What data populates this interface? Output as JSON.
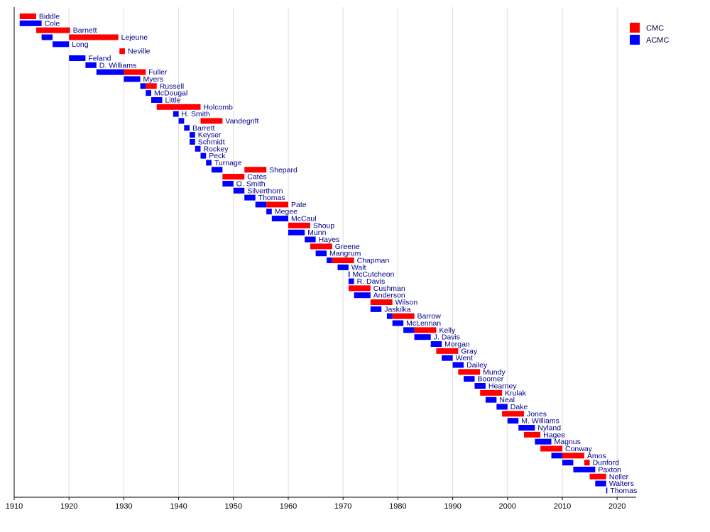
{
  "chart_data": {
    "type": "bar",
    "orientation": "horizontal-timeline",
    "xlim": [
      1910,
      2024
    ],
    "x_ticks": [
      1910,
      1920,
      1930,
      1940,
      1950,
      1960,
      1970,
      1980,
      1990,
      2000,
      2010,
      2020
    ],
    "grid": true,
    "legend_position": "top-right",
    "series": [
      {
        "name": "CMC",
        "color": "#ff0000"
      },
      {
        "name": "ACMC",
        "color": "#0000ff"
      }
    ],
    "rows": [
      {
        "label": "Biddle",
        "segments": [
          {
            "series": "CMC",
            "start": 1911,
            "end": 1914
          }
        ]
      },
      {
        "label": "Cole",
        "segments": [
          {
            "series": "ACMC",
            "start": 1911,
            "end": 1915
          }
        ]
      },
      {
        "label": "Barnett",
        "segments": [
          {
            "series": "CMC",
            "start": 1914,
            "end": 1920.2
          }
        ]
      },
      {
        "label": "Lejeune",
        "segments": [
          {
            "series": "ACMC",
            "start": 1915,
            "end": 1917
          },
          {
            "series": "CMC",
            "start": 1920,
            "end": 1929
          }
        ]
      },
      {
        "label": "Long",
        "segments": [
          {
            "series": "ACMC",
            "start": 1917,
            "end": 1920
          }
        ]
      },
      {
        "label": "Neville",
        "segments": [
          {
            "series": "CMC",
            "start": 1929.2,
            "end": 1930.2
          }
        ]
      },
      {
        "label": "Feland",
        "segments": [
          {
            "series": "ACMC",
            "start": 1920,
            "end": 1923
          }
        ]
      },
      {
        "label": "D. Williams",
        "segments": [
          {
            "series": "ACMC",
            "start": 1923,
            "end": 1925
          }
        ]
      },
      {
        "label": "Fuller",
        "segments": [
          {
            "series": "ACMC",
            "start": 1925,
            "end": 1928
          },
          {
            "series": "ACMC",
            "start": 1928,
            "end": 1930
          },
          {
            "series": "CMC",
            "start": 1930,
            "end": 1934
          }
        ]
      },
      {
        "label": "Myers",
        "segments": [
          {
            "series": "ACMC",
            "start": 1930,
            "end": 1933
          }
        ]
      },
      {
        "label": "Russell",
        "segments": [
          {
            "series": "ACMC",
            "start": 1933,
            "end": 1934
          },
          {
            "series": "CMC",
            "start": 1934,
            "end": 1936
          }
        ]
      },
      {
        "label": "McDougal",
        "segments": [
          {
            "series": "ACMC",
            "start": 1934,
            "end": 1935
          }
        ]
      },
      {
        "label": "Little",
        "segments": [
          {
            "series": "ACMC",
            "start": 1935,
            "end": 1937
          }
        ]
      },
      {
        "label": "Holcomb",
        "segments": [
          {
            "series": "CMC",
            "start": 1936,
            "end": 1944
          }
        ]
      },
      {
        "label": "H. Smith",
        "segments": [
          {
            "series": "ACMC",
            "start": 1939,
            "end": 1940
          }
        ]
      },
      {
        "label": "Vandegrift",
        "segments": [
          {
            "series": "ACMC",
            "start": 1940,
            "end": 1941
          },
          {
            "series": "CMC",
            "start": 1944,
            "end": 1948
          }
        ]
      },
      {
        "label": "Barrett",
        "segments": [
          {
            "series": "ACMC",
            "start": 1941,
            "end": 1942
          }
        ]
      },
      {
        "label": "Keyser",
        "segments": [
          {
            "series": "ACMC",
            "start": 1942,
            "end": 1943
          }
        ]
      },
      {
        "label": "Schmidt",
        "segments": [
          {
            "series": "ACMC",
            "start": 1942,
            "end": 1943
          }
        ]
      },
      {
        "label": "Rockey",
        "segments": [
          {
            "series": "ACMC",
            "start": 1943,
            "end": 1944
          }
        ]
      },
      {
        "label": "Peck",
        "segments": [
          {
            "series": "ACMC",
            "start": 1944,
            "end": 1945
          }
        ]
      },
      {
        "label": "Turnage",
        "segments": [
          {
            "series": "ACMC",
            "start": 1945,
            "end": 1946
          }
        ]
      },
      {
        "label": "Shepard",
        "segments": [
          {
            "series": "ACMC",
            "start": 1946,
            "end": 1948
          },
          {
            "series": "CMC",
            "start": 1952,
            "end": 1956
          }
        ]
      },
      {
        "label": "Cates",
        "segments": [
          {
            "series": "CMC",
            "start": 1948,
            "end": 1952
          }
        ]
      },
      {
        "label": "O. Smith",
        "segments": [
          {
            "series": "ACMC",
            "start": 1948,
            "end": 1950
          }
        ]
      },
      {
        "label": "Silverthorn",
        "segments": [
          {
            "series": "ACMC",
            "start": 1950,
            "end": 1952
          }
        ]
      },
      {
        "label": "Thomas",
        "segments": [
          {
            "series": "ACMC",
            "start": 1952,
            "end": 1954
          }
        ]
      },
      {
        "label": "Pate",
        "segments": [
          {
            "series": "ACMC",
            "start": 1954,
            "end": 1956
          },
          {
            "series": "CMC",
            "start": 1956,
            "end": 1960
          }
        ]
      },
      {
        "label": "Megee",
        "segments": [
          {
            "series": "ACMC",
            "start": 1956,
            "end": 1957
          }
        ]
      },
      {
        "label": "McCaul",
        "segments": [
          {
            "series": "ACMC",
            "start": 1957,
            "end": 1960
          }
        ]
      },
      {
        "label": "Shoup",
        "segments": [
          {
            "series": "CMC",
            "start": 1960,
            "end": 1964
          }
        ]
      },
      {
        "label": "Munn",
        "segments": [
          {
            "series": "ACMC",
            "start": 1960,
            "end": 1963
          }
        ]
      },
      {
        "label": "Hayes",
        "segments": [
          {
            "series": "ACMC",
            "start": 1963,
            "end": 1965
          }
        ]
      },
      {
        "label": "Greene",
        "segments": [
          {
            "series": "CMC",
            "start": 1964,
            "end": 1968
          }
        ]
      },
      {
        "label": "Mangrum",
        "segments": [
          {
            "series": "ACMC",
            "start": 1965,
            "end": 1967
          }
        ]
      },
      {
        "label": "Chapman",
        "segments": [
          {
            "series": "ACMC",
            "start": 1967,
            "end": 1968
          },
          {
            "series": "CMC",
            "start": 1968,
            "end": 1972
          }
        ]
      },
      {
        "label": "Walt",
        "segments": [
          {
            "series": "ACMC",
            "start": 1969,
            "end": 1971
          }
        ]
      },
      {
        "label": "McCutcheon",
        "segments": [
          {
            "series": "ACMC",
            "start": 1971,
            "end": 1971.2
          }
        ]
      },
      {
        "label": "R. Davis",
        "segments": [
          {
            "series": "ACMC",
            "start": 1971,
            "end": 1972
          }
        ]
      },
      {
        "label": "Cushman",
        "segments": [
          {
            "series": "CMC",
            "start": 1971,
            "end": 1975
          }
        ]
      },
      {
        "label": "Anderson",
        "segments": [
          {
            "series": "ACMC",
            "start": 1972,
            "end": 1975
          }
        ]
      },
      {
        "label": "Wilson",
        "segments": [
          {
            "series": "CMC",
            "start": 1975,
            "end": 1979
          }
        ]
      },
      {
        "label": "Jaskilka",
        "segments": [
          {
            "series": "ACMC",
            "start": 1975,
            "end": 1977
          }
        ]
      },
      {
        "label": "Barrow",
        "segments": [
          {
            "series": "ACMC",
            "start": 1978,
            "end": 1979
          },
          {
            "series": "CMC",
            "start": 1979,
            "end": 1983
          }
        ]
      },
      {
        "label": "McLennan",
        "segments": [
          {
            "series": "ACMC",
            "start": 1979,
            "end": 1981
          }
        ]
      },
      {
        "label": "Kelly",
        "segments": [
          {
            "series": "ACMC",
            "start": 1981,
            "end": 1983
          },
          {
            "series": "CMC",
            "start": 1983,
            "end": 1987
          }
        ]
      },
      {
        "label": "J. Davis",
        "segments": [
          {
            "series": "ACMC",
            "start": 1983,
            "end": 1986
          }
        ]
      },
      {
        "label": "Morgan",
        "segments": [
          {
            "series": "ACMC",
            "start": 1986,
            "end": 1988
          }
        ]
      },
      {
        "label": "Gray",
        "segments": [
          {
            "series": "CMC",
            "start": 1987,
            "end": 1991
          }
        ]
      },
      {
        "label": "Went",
        "segments": [
          {
            "series": "ACMC",
            "start": 1988,
            "end": 1990
          }
        ]
      },
      {
        "label": "Dailey",
        "segments": [
          {
            "series": "ACMC",
            "start": 1990,
            "end": 1992
          }
        ]
      },
      {
        "label": "Mundy",
        "segments": [
          {
            "series": "CMC",
            "start": 1991,
            "end": 1995
          }
        ]
      },
      {
        "label": "Boomer",
        "segments": [
          {
            "series": "ACMC",
            "start": 1992,
            "end": 1994
          }
        ]
      },
      {
        "label": "Hearney",
        "segments": [
          {
            "series": "ACMC",
            "start": 1994,
            "end": 1996
          }
        ]
      },
      {
        "label": "Krulak",
        "segments": [
          {
            "series": "CMC",
            "start": 1995,
            "end": 1999
          }
        ]
      },
      {
        "label": "Neal",
        "segments": [
          {
            "series": "ACMC",
            "start": 1996,
            "end": 1998
          }
        ]
      },
      {
        "label": "Dake",
        "segments": [
          {
            "series": "ACMC",
            "start": 1998,
            "end": 2000
          }
        ]
      },
      {
        "label": "Jones",
        "segments": [
          {
            "series": "CMC",
            "start": 1999,
            "end": 2003
          }
        ]
      },
      {
        "label": "M. Williams",
        "segments": [
          {
            "series": "ACMC",
            "start": 2000,
            "end": 2002
          }
        ]
      },
      {
        "label": "Nyland",
        "segments": [
          {
            "series": "ACMC",
            "start": 2002,
            "end": 2005
          }
        ]
      },
      {
        "label": "Hagee",
        "segments": [
          {
            "series": "CMC",
            "start": 2003,
            "end": 2006
          }
        ]
      },
      {
        "label": "Magnus",
        "segments": [
          {
            "series": "ACMC",
            "start": 2005,
            "end": 2008
          }
        ]
      },
      {
        "label": "Conway",
        "segments": [
          {
            "series": "CMC",
            "start": 2006,
            "end": 2010
          }
        ]
      },
      {
        "label": "Amos",
        "segments": [
          {
            "series": "ACMC",
            "start": 2008,
            "end": 2010
          },
          {
            "series": "CMC",
            "start": 2010,
            "end": 2014
          }
        ]
      },
      {
        "label": "Dunford",
        "segments": [
          {
            "series": "ACMC",
            "start": 2010,
            "end": 2012
          },
          {
            "series": "CMC",
            "start": 2014,
            "end": 2015
          }
        ]
      },
      {
        "label": "Paxton",
        "segments": [
          {
            "series": "ACMC",
            "start": 2012,
            "end": 2016
          }
        ]
      },
      {
        "label": "Neller",
        "segments": [
          {
            "series": "CMC",
            "start": 2015,
            "end": 2018
          }
        ]
      },
      {
        "label": "Walters",
        "segments": [
          {
            "series": "ACMC",
            "start": 2016,
            "end": 2018
          }
        ]
      },
      {
        "label": "Thomas",
        "segments": [
          {
            "series": "ACMC",
            "start": 2018,
            "end": 2018.2
          }
        ]
      }
    ]
  }
}
